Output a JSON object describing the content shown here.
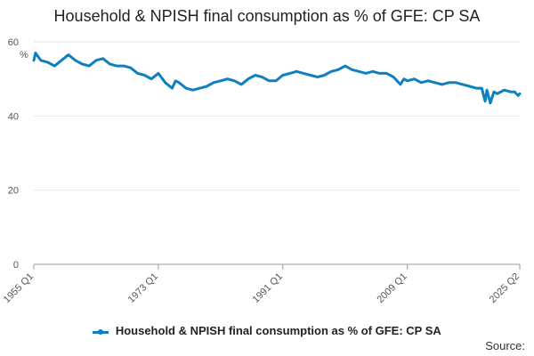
{
  "title": "Household & NPISH final consumption as % of GFE: CP SA",
  "source_label": "Source:",
  "colors": {
    "series": "#0e80c0",
    "grid": "#e6e6e6",
    "axis": "#999999"
  },
  "chart_data": {
    "type": "line",
    "title": "Household & NPISH final consumption as % of GFE: CP SA",
    "ylabel": "%",
    "ylim": [
      0,
      60
    ],
    "yticks": [
      0,
      20,
      40,
      60
    ],
    "xticks": [
      "1955 Q1",
      "1973 Q1",
      "1991 Q1",
      "2009 Q1",
      "2025 Q2"
    ],
    "xrange": [
      "1955 Q1",
      "2025 Q2"
    ],
    "grid": true,
    "legend_position": "bottom",
    "series": [
      {
        "name": "Household & NPISH final consumption as % of GFE: CP SA",
        "points": [
          [
            "1955 Q1",
            55.0
          ],
          [
            "1955 Q2",
            57.0
          ],
          [
            "1956 Q1",
            55.0
          ],
          [
            "1957 Q1",
            54.5
          ],
          [
            "1958 Q1",
            53.5
          ],
          [
            "1959 Q1",
            55.0
          ],
          [
            "1960 Q1",
            56.5
          ],
          [
            "1961 Q1",
            55.0
          ],
          [
            "1962 Q1",
            54.0
          ],
          [
            "1963 Q1",
            53.5
          ],
          [
            "1964 Q1",
            55.0
          ],
          [
            "1965 Q1",
            55.5
          ],
          [
            "1966 Q1",
            54.0
          ],
          [
            "1967 Q1",
            53.5
          ],
          [
            "1968 Q1",
            53.5
          ],
          [
            "1969 Q1",
            53.0
          ],
          [
            "1970 Q1",
            51.5
          ],
          [
            "1971 Q1",
            51.0
          ],
          [
            "1972 Q1",
            50.0
          ],
          [
            "1973 Q1",
            51.5
          ],
          [
            "1974 Q1",
            49.0
          ],
          [
            "1975 Q1",
            47.5
          ],
          [
            "1975 Q3",
            49.5
          ],
          [
            "1976 Q1",
            49.0
          ],
          [
            "1977 Q1",
            47.5
          ],
          [
            "1978 Q1",
            47.0
          ],
          [
            "1979 Q1",
            47.5
          ],
          [
            "1980 Q1",
            48.0
          ],
          [
            "1981 Q1",
            49.0
          ],
          [
            "1982 Q1",
            49.5
          ],
          [
            "1983 Q1",
            50.0
          ],
          [
            "1984 Q1",
            49.5
          ],
          [
            "1985 Q1",
            48.5
          ],
          [
            "1986 Q1",
            50.0
          ],
          [
            "1987 Q1",
            51.0
          ],
          [
            "1988 Q1",
            50.5
          ],
          [
            "1989 Q1",
            49.5
          ],
          [
            "1990 Q1",
            49.5
          ],
          [
            "1991 Q1",
            51.0
          ],
          [
            "1992 Q1",
            51.5
          ],
          [
            "1993 Q1",
            52.0
          ],
          [
            "1994 Q1",
            51.5
          ],
          [
            "1995 Q1",
            51.0
          ],
          [
            "1996 Q1",
            50.5
          ],
          [
            "1997 Q1",
            51.0
          ],
          [
            "1998 Q1",
            52.0
          ],
          [
            "1999 Q1",
            52.5
          ],
          [
            "2000 Q1",
            53.5
          ],
          [
            "2001 Q1",
            52.5
          ],
          [
            "2002 Q1",
            52.0
          ],
          [
            "2003 Q1",
            51.5
          ],
          [
            "2004 Q1",
            52.0
          ],
          [
            "2005 Q1",
            51.5
          ],
          [
            "2006 Q1",
            51.5
          ],
          [
            "2007 Q1",
            50.5
          ],
          [
            "2008 Q1",
            48.5
          ],
          [
            "2008 Q3",
            50.0
          ],
          [
            "2009 Q1",
            49.5
          ],
          [
            "2010 Q1",
            50.0
          ],
          [
            "2011 Q1",
            49.0
          ],
          [
            "2012 Q1",
            49.5
          ],
          [
            "2013 Q1",
            49.0
          ],
          [
            "2014 Q1",
            48.5
          ],
          [
            "2015 Q1",
            49.0
          ],
          [
            "2016 Q1",
            49.0
          ],
          [
            "2017 Q1",
            48.5
          ],
          [
            "2018 Q1",
            48.0
          ],
          [
            "2019 Q1",
            47.5
          ],
          [
            "2019 Q4",
            47.5
          ],
          [
            "2020 Q2",
            44.0
          ],
          [
            "2020 Q3",
            47.0
          ],
          [
            "2021 Q1",
            43.5
          ],
          [
            "2021 Q3",
            46.5
          ],
          [
            "2022 Q1",
            46.0
          ],
          [
            "2023 Q1",
            47.0
          ],
          [
            "2024 Q1",
            46.5
          ],
          [
            "2024 Q3",
            46.5
          ],
          [
            "2025 Q1",
            45.5
          ],
          [
            "2025 Q2",
            46.0
          ]
        ]
      }
    ]
  }
}
